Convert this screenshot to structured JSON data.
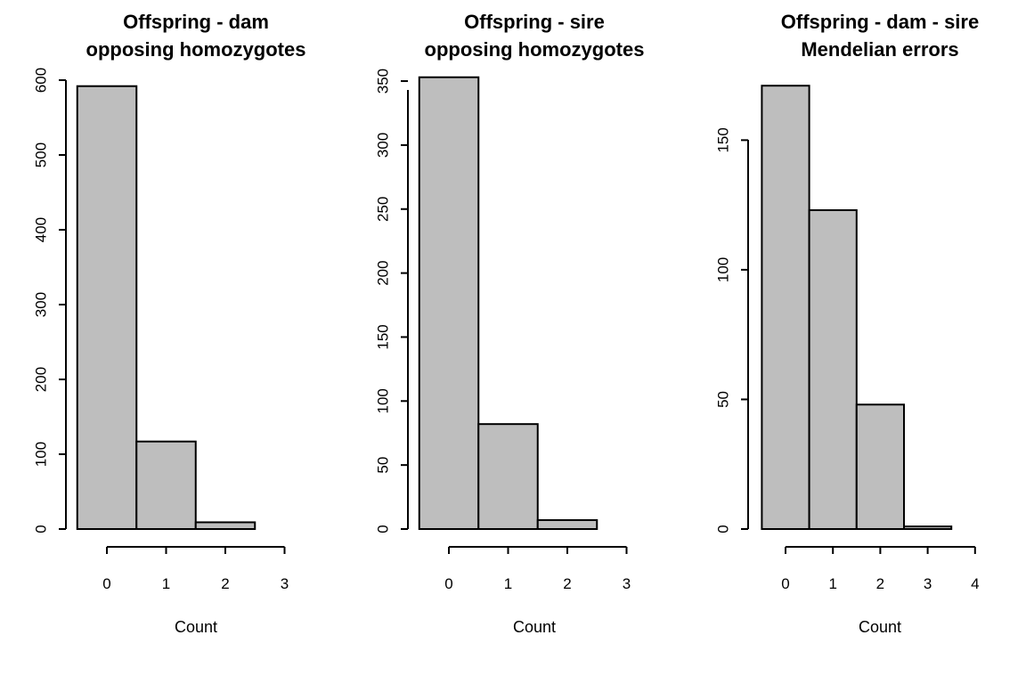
{
  "chart_data": [
    {
      "type": "bar",
      "title": [
        "Offspring - dam",
        "opposing homozygotes"
      ],
      "xlabel": "Count",
      "ylabel": "",
      "categories": [
        "0",
        "1",
        "2",
        "3"
      ],
      "bins": [
        [
          -0.5,
          0.5
        ],
        [
          0.5,
          1.5
        ],
        [
          1.5,
          2.5
        ],
        [
          2.5,
          3.5
        ]
      ],
      "values": [
        592,
        117,
        9,
        0
      ],
      "xticks": [
        0,
        1,
        2,
        3
      ],
      "yticks": [
        0,
        100,
        200,
        300,
        400,
        500,
        600
      ],
      "xlim": [
        -0.5,
        3.5
      ],
      "ylim": [
        0,
        600
      ],
      "bar_color": "#bebebe"
    },
    {
      "type": "bar",
      "title": [
        "Offspring - sire",
        "opposing homozygotes"
      ],
      "xlabel": "Count",
      "ylabel": "",
      "categories": [
        "0",
        "1",
        "2",
        "3"
      ],
      "bins": [
        [
          -0.5,
          0.5
        ],
        [
          0.5,
          1.5
        ],
        [
          1.5,
          2.5
        ],
        [
          2.5,
          3.5
        ]
      ],
      "values": [
        353,
        82,
        7,
        0
      ],
      "xticks": [
        0,
        1,
        2,
        3
      ],
      "yticks": [
        0,
        50,
        100,
        150,
        200,
        250,
        300,
        350
      ],
      "xlim": [
        -0.5,
        3.5
      ],
      "ylim": [
        0,
        350
      ],
      "bar_color": "#bebebe"
    },
    {
      "type": "bar",
      "title": [
        "Offspring - dam - sire",
        "Mendelian errors"
      ],
      "xlabel": "Count",
      "ylabel": "",
      "categories": [
        "0",
        "1",
        "2",
        "3",
        "4"
      ],
      "bins": [
        [
          -0.5,
          0.5
        ],
        [
          0.5,
          1.5
        ],
        [
          1.5,
          2.5
        ],
        [
          2.5,
          3.5
        ],
        [
          3.5,
          4.5
        ]
      ],
      "values": [
        171,
        123,
        48,
        1,
        0
      ],
      "xticks": [
        0,
        1,
        2,
        3,
        4
      ],
      "yticks": [
        0,
        50,
        100,
        150
      ],
      "xlim": [
        -0.5,
        4.5
      ],
      "ylim": [
        0,
        150
      ],
      "bar_color": "#bebebe"
    }
  ]
}
